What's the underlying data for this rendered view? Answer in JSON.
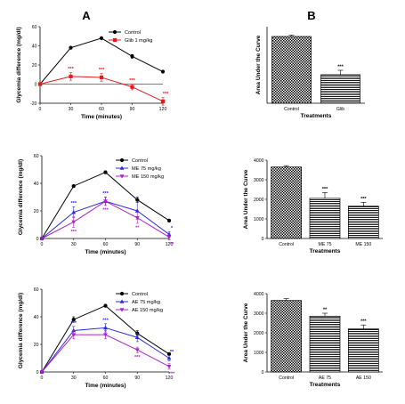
{
  "panel_labels": [
    "A",
    "B"
  ],
  "chart_data": [
    {
      "id": "line1",
      "type": "line",
      "xlabel": "Time (minutes)",
      "ylabel": "Glycemia difference (mg/dl)",
      "xlim": [
        0,
        120
      ],
      "ylim": [
        -20,
        60
      ],
      "xticks": [
        0,
        30,
        60,
        90,
        120
      ],
      "yticks": [
        -20,
        0,
        20,
        40,
        60
      ],
      "legend_position": "top-right",
      "series": [
        {
          "name": "Control",
          "color": "#000000",
          "marker": "circle",
          "x": [
            0,
            30,
            60,
            90,
            120
          ],
          "y": [
            0,
            38,
            48,
            29,
            13
          ],
          "err": [
            0,
            1,
            1,
            2,
            1
          ],
          "sig": [
            "",
            "",
            "",
            "",
            ""
          ]
        },
        {
          "name": "Glib 1 mg/kg",
          "color": "#e8191a",
          "marker": "square",
          "x": [
            0,
            30,
            60,
            90,
            120
          ],
          "y": [
            0,
            8,
            7,
            -3,
            -18
          ],
          "err": [
            0,
            4,
            4,
            3,
            4
          ],
          "sig": [
            "",
            "***",
            "***",
            "***",
            "***"
          ]
        }
      ]
    },
    {
      "id": "bar1",
      "type": "bar",
      "xlabel": "Treatments",
      "ylabel": "Area Under the Curve",
      "categories": [
        "Control",
        "Glib"
      ],
      "values": [
        3750,
        1600
      ],
      "errors": [
        80,
        250
      ],
      "sig": [
        "",
        "***"
      ],
      "ylim": [
        0,
        4300
      ],
      "yticks": [],
      "ytick_labels": []
    },
    {
      "id": "line2",
      "type": "line",
      "xlabel": "Time (minutes)",
      "ylabel": "Glycemia difference (mg/dl)",
      "xlim": [
        0,
        120
      ],
      "ylim": [
        0,
        60
      ],
      "xticks": [
        0,
        30,
        60,
        90,
        120
      ],
      "yticks": [
        0,
        20,
        40,
        60
      ],
      "legend_position": "top-right",
      "series": [
        {
          "name": "Control",
          "color": "#000000",
          "marker": "circle",
          "x": [
            0,
            30,
            60,
            90,
            120
          ],
          "y": [
            0,
            38,
            48,
            28,
            13
          ],
          "err": [
            0,
            1,
            1,
            2,
            1
          ],
          "sig": [
            "",
            "",
            "",
            "",
            ""
          ]
        },
        {
          "name": "ME 75 mg/kg",
          "color": "#2b2bd6",
          "marker": "triangle-up",
          "x": [
            0,
            30,
            60,
            90,
            120
          ],
          "y": [
            0,
            19,
            27,
            20,
            3
          ],
          "err": [
            0,
            4,
            3,
            6,
            2
          ],
          "sig": [
            "",
            "***",
            "***",
            "*",
            "*"
          ]
        },
        {
          "name": "ME 150 mg/kg",
          "color": "#b020c8",
          "marker": "triangle-down",
          "x": [
            0,
            30,
            60,
            90,
            120
          ],
          "y": [
            0,
            12,
            27,
            15,
            1
          ],
          "err": [
            0,
            4,
            3,
            4,
            2
          ],
          "sig": [
            "",
            "***",
            "***",
            "**",
            "**"
          ]
        }
      ]
    },
    {
      "id": "bar2",
      "type": "bar",
      "xlabel": "Treatments",
      "ylabel": "Area Under the Curve",
      "categories": [
        "Control",
        "ME 75",
        "ME 150"
      ],
      "values": [
        3650,
        2050,
        1650
      ],
      "errors": [
        70,
        300,
        200
      ],
      "sig": [
        "",
        "***",
        "***"
      ],
      "ylim": [
        0,
        4000
      ],
      "yticks": [
        0,
        1000,
        2000,
        3000,
        4000
      ],
      "ytick_labels": [
        "0",
        "1000",
        "2000",
        "3000",
        "4000"
      ]
    },
    {
      "id": "line3",
      "type": "line",
      "xlabel": "Time (minutes)",
      "ylabel": "Glycemia difference (mg/dl)",
      "xlim": [
        0,
        120
      ],
      "ylim": [
        0,
        60
      ],
      "xticks": [
        0,
        30,
        60,
        90,
        120
      ],
      "yticks": [
        0,
        20,
        40,
        60
      ],
      "legend_position": "top-right",
      "series": [
        {
          "name": "Control",
          "color": "#000000",
          "marker": "circle",
          "x": [
            0,
            30,
            60,
            90,
            120
          ],
          "y": [
            0,
            38,
            48,
            28,
            13
          ],
          "err": [
            0,
            2,
            1,
            2,
            1
          ],
          "sig": [
            "",
            "",
            "",
            "",
            ""
          ]
        },
        {
          "name": "AE 75 mg/kg",
          "color": "#2b2bd6",
          "marker": "triangle-up",
          "x": [
            0,
            30,
            60,
            90,
            120
          ],
          "y": [
            0,
            30,
            32,
            25,
            10
          ],
          "err": [
            0,
            3,
            3,
            3,
            2
          ],
          "sig": [
            "",
            "***",
            "***",
            "",
            "**"
          ]
        },
        {
          "name": "AE 150 mg/kg",
          "color": "#b020c8",
          "marker": "triangle-down",
          "x": [
            0,
            30,
            60,
            90,
            120
          ],
          "y": [
            0,
            27,
            27,
            16,
            4
          ],
          "err": [
            0,
            3,
            3,
            2,
            2
          ],
          "sig": [
            "",
            "",
            "",
            "***",
            "***"
          ]
        }
      ]
    },
    {
      "id": "bar3",
      "type": "bar",
      "xlabel": "Treatments",
      "ylabel": "Area Under the Curve",
      "categories": [
        "Control",
        "AE 75",
        "AE 150"
      ],
      "values": [
        3650,
        2850,
        2200
      ],
      "errors": [
        100,
        150,
        200
      ],
      "sig": [
        "",
        "**",
        "***"
      ],
      "ylim": [
        0,
        4000
      ],
      "yticks": [
        0,
        1000,
        2000,
        3000,
        4000
      ],
      "ytick_labels": [
        "0",
        "1000",
        "2000",
        "3000",
        "4000"
      ]
    }
  ]
}
